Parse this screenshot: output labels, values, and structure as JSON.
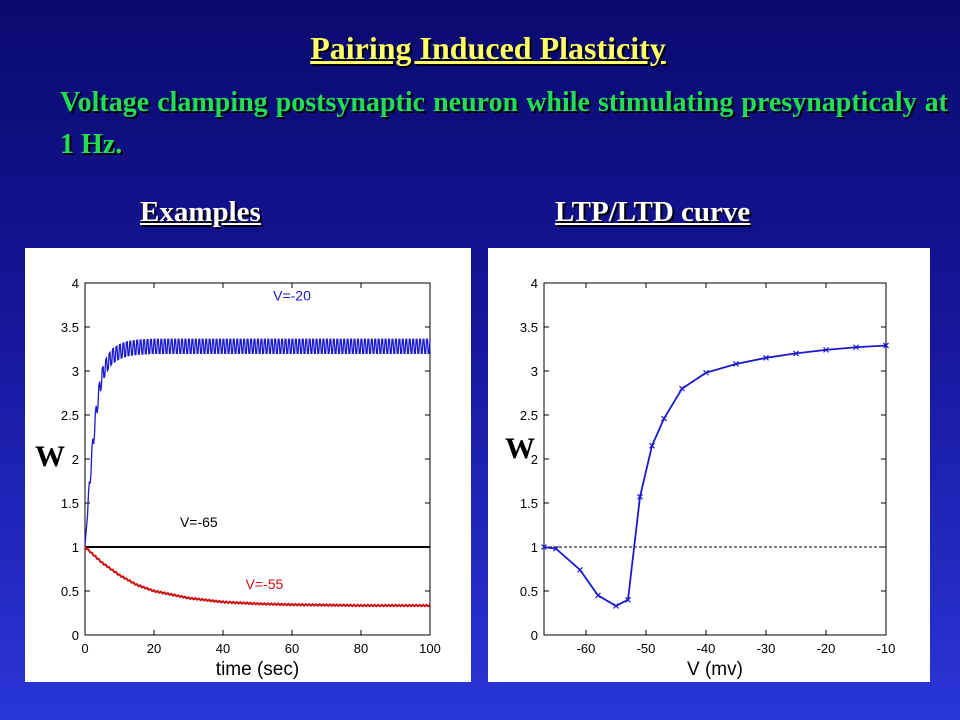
{
  "slide": {
    "title": "Pairing Induced Plasticity",
    "subtitle": "Voltage clamping postsynaptic neuron while stimulating presynapticaly at 1 Hz.",
    "left_heading": "Examples",
    "right_heading": "LTP/LTD curve"
  },
  "chart_data": [
    {
      "type": "line",
      "xlabel": "time (sec)",
      "ylabel": "W",
      "xlim": [
        0,
        100
      ],
      "ylim": [
        0,
        4
      ],
      "xticks": [
        0,
        20,
        40,
        60,
        80,
        100
      ],
      "yticks": [
        0,
        0.5,
        1,
        1.5,
        2,
        2.5,
        3,
        3.5,
        4
      ],
      "grid": false,
      "series": [
        {
          "name": "V=-20",
          "color": "#1a1acc",
          "x": [
            0,
            1,
            2,
            3,
            4,
            5,
            6,
            7,
            8,
            10,
            12,
            15,
            20,
            30,
            40,
            60,
            80,
            100
          ],
          "values": [
            1.0,
            1.55,
            2.05,
            2.45,
            2.75,
            2.95,
            3.05,
            3.12,
            3.17,
            3.22,
            3.25,
            3.27,
            3.28,
            3.28,
            3.28,
            3.28,
            3.28,
            3.28
          ],
          "oscillation_amplitude": 0.08
        },
        {
          "name": "V=-65",
          "color": "#000000",
          "x": [
            0,
            100
          ],
          "values": [
            1.0,
            1.0
          ]
        },
        {
          "name": "V=-55",
          "color": "#cc1111",
          "x": [
            0,
            5,
            10,
            15,
            20,
            30,
            40,
            50,
            60,
            70,
            80,
            90,
            100
          ],
          "values": [
            1.0,
            0.82,
            0.68,
            0.57,
            0.5,
            0.42,
            0.375,
            0.355,
            0.345,
            0.34,
            0.335,
            0.335,
            0.335
          ]
        }
      ]
    },
    {
      "type": "line",
      "xlabel": "V (mv)",
      "ylabel": "W",
      "xlim": [
        -67,
        -10
      ],
      "ylim": [
        0,
        4
      ],
      "xticks": [
        -60,
        -50,
        -40,
        -30,
        -20,
        -10
      ],
      "yticks": [
        0,
        0.5,
        1,
        1.5,
        2,
        2.5,
        3,
        3.5,
        4
      ],
      "grid": false,
      "reference_line_y": 1,
      "series": [
        {
          "name": "",
          "color": "#1a1acc",
          "x": [
            -67,
            -65,
            -61,
            -58,
            -55,
            -53,
            -51,
            -49,
            -47,
            -44,
            -40,
            -35,
            -30,
            -25,
            -20,
            -15,
            -10
          ],
          "values": [
            1.0,
            0.98,
            0.74,
            0.45,
            0.33,
            0.4,
            1.57,
            2.15,
            2.46,
            2.8,
            2.98,
            3.08,
            3.15,
            3.2,
            3.24,
            3.27,
            3.29
          ]
        }
      ]
    }
  ]
}
